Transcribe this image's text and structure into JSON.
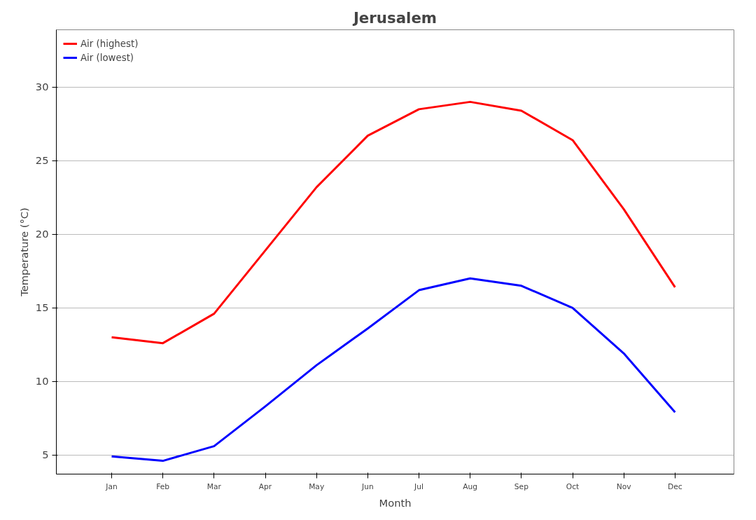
{
  "chart_data": {
    "type": "line",
    "title": "Jerusalem",
    "xlabel": "Month",
    "ylabel": "Temperature (°C)",
    "categories": [
      "Jan",
      "Feb",
      "Mar",
      "Apr",
      "May",
      "Jun",
      "Jul",
      "Aug",
      "Sep",
      "Oct",
      "Nov",
      "Dec"
    ],
    "series": [
      {
        "name": "Air (highest)",
        "color": "#ff0000",
        "values": [
          13.0,
          12.6,
          14.6,
          18.9,
          23.2,
          26.7,
          28.5,
          29.0,
          28.4,
          26.4,
          21.7,
          16.4
        ]
      },
      {
        "name": "Air (lowest)",
        "color": "#0000ff",
        "values": [
          4.9,
          4.6,
          5.6,
          8.3,
          11.1,
          13.6,
          16.2,
          17.0,
          16.5,
          15.0,
          11.9,
          7.9
        ]
      }
    ],
    "ylim": [
      3.7,
      33.9
    ],
    "yticks": [
      5,
      10,
      15,
      20,
      25,
      30
    ],
    "grid": "y",
    "legend": "top left",
    "marker": "none",
    "line_style": "solid"
  }
}
